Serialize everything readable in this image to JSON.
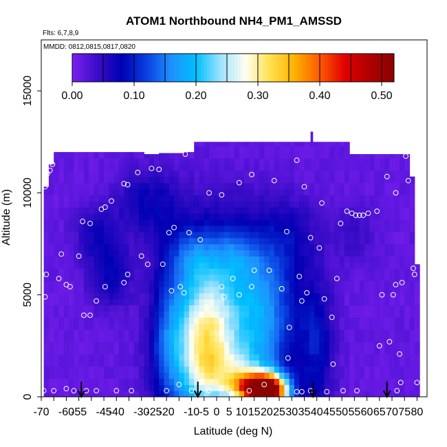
{
  "chart_data": {
    "type": "heatmap",
    "title": "ATOM1 Northbound NH4_PM1_AMSSD",
    "flights_label": "Flts: 6,7,8,9",
    "dates_label": "MMDD: 0812,0815,0817,0820",
    "xlabel": "Latitude (deg N)",
    "ylabel": "Altitude (m)",
    "xlim": [
      -70,
      84
    ],
    "ylim": [
      0,
      17500
    ],
    "x_ticks": [
      -70,
      -65,
      -60,
      -55,
      -50,
      -45,
      -40,
      -35,
      -30,
      -25,
      -20,
      -15,
      -10,
      -5,
      0,
      5,
      10,
      15,
      20,
      25,
      30,
      35,
      40,
      45,
      50,
      55,
      60,
      65,
      70,
      75,
      80
    ],
    "x_tick_labels": [
      "-70",
      "-55",
      "-40",
      "-25",
      "-10",
      "0",
      "10",
      "20",
      "30",
      "40",
      "50",
      "60",
      "70",
      "80",
      "-60",
      "-45",
      "-30",
      "-20",
      "-5",
      "5",
      "15",
      "25",
      "35",
      "45",
      "55",
      "65",
      "75"
    ],
    "y_ticks": [
      0,
      5000,
      10000,
      15000
    ],
    "y_tick_labels": [
      "0",
      "5000",
      "10000",
      "15000"
    ],
    "colorbar": {
      "min": 0.0,
      "max": 0.52,
      "tick_values": [
        0.0,
        0.1,
        0.2,
        0.3,
        0.4,
        0.5
      ],
      "tick_labels": [
        "0.00",
        "0.10",
        "0.20",
        "0.30",
        "0.40",
        "0.50"
      ],
      "colors": [
        "#7A1FF0",
        "#3C0DC8",
        "#0000B4",
        "#0A3FE0",
        "#1E90FF",
        "#00BFFF",
        "#9FE3FF",
        "#FFFFF0",
        "#FFE14D",
        "#FFB000",
        "#FF5A00",
        "#E00000",
        "#B00000",
        "#8B0000"
      ]
    },
    "flight_markers_lat": [
      -54,
      -7.5,
      38.5,
      68
    ],
    "sample_points": [
      {
        "lat": -68.5,
        "alt": 10300
      },
      {
        "lat": -67.5,
        "alt": 10950
      },
      {
        "lat": -66.5,
        "alt": 11100
      },
      {
        "lat": -65.5,
        "alt": 11400
      },
      {
        "lat": -62,
        "alt": 7000
      },
      {
        "lat": -63,
        "alt": 5800
      },
      {
        "lat": -68,
        "alt": 6000
      },
      {
        "lat": -68.5,
        "alt": 4900
      },
      {
        "lat": -60,
        "alt": 5500
      },
      {
        "lat": -58.5,
        "alt": 5400
      },
      {
        "lat": -55,
        "alt": 6900
      },
      {
        "lat": -53.5,
        "alt": 8600
      },
      {
        "lat": -50.5,
        "alt": 8500
      },
      {
        "lat": -46,
        "alt": 9200
      },
      {
        "lat": -44.5,
        "alt": 9300
      },
      {
        "lat": -42,
        "alt": 9600
      },
      {
        "lat": -37,
        "alt": 10450
      },
      {
        "lat": -35.5,
        "alt": 10400
      },
      {
        "lat": -31.5,
        "alt": 11000
      },
      {
        "lat": -26,
        "alt": 11200
      },
      {
        "lat": -23,
        "alt": 11150
      },
      {
        "lat": -12.5,
        "alt": 11900
      },
      {
        "lat": -30,
        "alt": 6900
      },
      {
        "lat": -27.5,
        "alt": 6500
      },
      {
        "lat": -21.5,
        "alt": 6500
      },
      {
        "lat": -19,
        "alt": 8050
      },
      {
        "lat": -17,
        "alt": 8300
      },
      {
        "lat": -11,
        "alt": 8050
      },
      {
        "lat": -6.5,
        "alt": 7700
      },
      {
        "lat": -14.5,
        "alt": 5400
      },
      {
        "lat": -18,
        "alt": 5200
      },
      {
        "lat": -13,
        "alt": 5100
      },
      {
        "lat": -37,
        "alt": 5600
      },
      {
        "lat": -35.5,
        "alt": 6000
      },
      {
        "lat": -48,
        "alt": 4700
      },
      {
        "lat": -50.5,
        "alt": 4000
      },
      {
        "lat": -53,
        "alt": 4000
      },
      {
        "lat": -44.5,
        "alt": 5400
      },
      {
        "lat": -3,
        "alt": 10000
      },
      {
        "lat": 2,
        "alt": 9900
      },
      {
        "lat": 9,
        "alt": 10500
      },
      {
        "lat": 14,
        "alt": 10900
      },
      {
        "lat": 23,
        "alt": 10600
      },
      {
        "lat": 32,
        "alt": 11600
      },
      {
        "lat": 35,
        "alt": 10300
      },
      {
        "lat": 42,
        "alt": 9500
      },
      {
        "lat": 49.5,
        "alt": 8500
      },
      {
        "lat": 52,
        "alt": 9100
      },
      {
        "lat": 54,
        "alt": 9000
      },
      {
        "lat": 55.5,
        "alt": 8900
      },
      {
        "lat": 57,
        "alt": 8900
      },
      {
        "lat": 58.5,
        "alt": 8900
      },
      {
        "lat": 60.5,
        "alt": 9000
      },
      {
        "lat": 64,
        "alt": 9100
      },
      {
        "lat": 68,
        "alt": 10800
      },
      {
        "lat": 71.5,
        "alt": 10000
      },
      {
        "lat": 75.5,
        "alt": 11800
      },
      {
        "lat": 76.5,
        "alt": 10600
      },
      {
        "lat": 78.5,
        "alt": 6300
      },
      {
        "lat": 79,
        "alt": 6000
      },
      {
        "lat": 28,
        "alt": 8100
      },
      {
        "lat": 37.5,
        "alt": 7800
      },
      {
        "lat": 41,
        "alt": 7300
      },
      {
        "lat": 33,
        "alt": 5900
      },
      {
        "lat": 48,
        "alt": 5800
      },
      {
        "lat": 15,
        "alt": 6200
      },
      {
        "lat": 21,
        "alt": 6200
      },
      {
        "lat": 6.5,
        "alt": 5800
      },
      {
        "lat": 2,
        "alt": 5400
      },
      {
        "lat": 3,
        "alt": 4900
      },
      {
        "lat": 9,
        "alt": 5000
      },
      {
        "lat": 14,
        "alt": 5400
      },
      {
        "lat": 26,
        "alt": 5300
      },
      {
        "lat": 34,
        "alt": 4700
      },
      {
        "lat": 36,
        "alt": 5100
      },
      {
        "lat": 43,
        "alt": 4800
      },
      {
        "lat": 46,
        "alt": 3900
      },
      {
        "lat": -4,
        "alt": 4400
      },
      {
        "lat": 29,
        "alt": 3400
      },
      {
        "lat": 28.5,
        "alt": 1900
      },
      {
        "lat": 46.5,
        "alt": 1600
      },
      {
        "lat": 65,
        "alt": 2500
      },
      {
        "lat": 69,
        "alt": 2700
      },
      {
        "lat": 73,
        "alt": 2100
      },
      {
        "lat": 74,
        "alt": 5600
      },
      {
        "lat": 71.5,
        "alt": 5500
      },
      {
        "lat": 70.5,
        "alt": 5000
      },
      {
        "lat": 66,
        "alt": 5000
      },
      {
        "lat": 73.5,
        "alt": 700
      },
      {
        "lat": 80,
        "alt": 700
      },
      {
        "lat": 72,
        "alt": 300
      },
      {
        "lat": -69,
        "alt": 300
      },
      {
        "lat": -65,
        "alt": 300
      },
      {
        "lat": -57,
        "alt": 300
      },
      {
        "lat": -52,
        "alt": 300
      },
      {
        "lat": -48,
        "alt": 300
      },
      {
        "lat": -40,
        "alt": 300
      },
      {
        "lat": -34,
        "alt": 300
      },
      {
        "lat": -20,
        "alt": 300
      },
      {
        "lat": -10,
        "alt": 300
      },
      {
        "lat": -3,
        "alt": 300
      },
      {
        "lat": 5,
        "alt": 300
      },
      {
        "lat": 13,
        "alt": 300
      },
      {
        "lat": 32,
        "alt": 250
      },
      {
        "lat": 34,
        "alt": 250
      },
      {
        "lat": 37.5,
        "alt": 300
      },
      {
        "lat": 44,
        "alt": 250
      },
      {
        "lat": 50.5,
        "alt": 300
      },
      {
        "lat": 56,
        "alt": 300
      },
      {
        "lat": -60,
        "alt": 400
      },
      {
        "lat": -15,
        "alt": 600
      },
      {
        "lat": 19,
        "alt": 600
      }
    ]
  }
}
